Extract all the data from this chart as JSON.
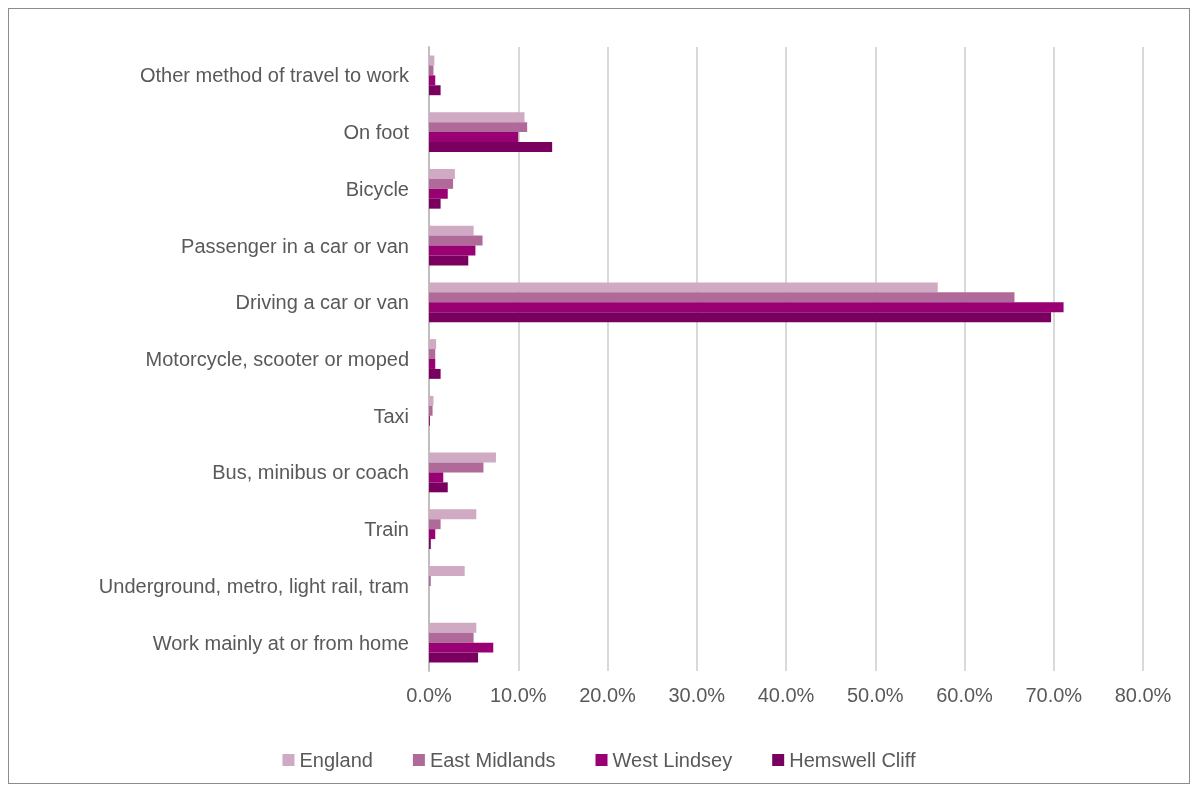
{
  "chart_data": {
    "type": "bar",
    "orientation": "horizontal",
    "categories": [
      "Other method of travel to work",
      "On foot",
      "Bicycle",
      "Passenger in a car or van",
      "Driving a car or van",
      "Motorcycle, scooter or moped",
      "Taxi",
      "Bus, minibus or coach",
      "Train",
      "Underground, metro, light rail, tram",
      "Work mainly at or from home"
    ],
    "series": [
      {
        "name": "England",
        "color": "#d0a9c3",
        "values": [
          0.6,
          10.7,
          2.9,
          5.0,
          57.0,
          0.8,
          0.5,
          7.5,
          5.3,
          4.0,
          5.3
        ]
      },
      {
        "name": "East Midlands",
        "color": "#b06a9a",
        "values": [
          0.5,
          11.0,
          2.7,
          6.0,
          65.6,
          0.7,
          0.4,
          6.1,
          1.3,
          0.2,
          5.0
        ]
      },
      {
        "name": "West Lindsey",
        "color": "#990073",
        "values": [
          0.7,
          10.0,
          2.1,
          5.2,
          71.1,
          0.7,
          0.1,
          1.6,
          0.7,
          null,
          7.2
        ]
      },
      {
        "name": "Hemswell Cliff",
        "color": "#7a0060",
        "values": [
          1.3,
          13.8,
          1.3,
          4.4,
          69.7,
          1.3,
          null,
          2.1,
          0.2,
          null,
          5.5
        ]
      }
    ],
    "xlim": [
      0,
      80
    ],
    "xticks": [
      {
        "value": 0,
        "label": "0.0%"
      },
      {
        "value": 10,
        "label": "10.0%"
      },
      {
        "value": 20,
        "label": "20.0%"
      },
      {
        "value": 30,
        "label": "30.0%"
      },
      {
        "value": 40,
        "label": "40.0%"
      },
      {
        "value": 50,
        "label": "50.0%"
      },
      {
        "value": 60,
        "label": "60.0%"
      },
      {
        "value": 70,
        "label": "70.0%"
      },
      {
        "value": 80,
        "label": "80.0%"
      }
    ],
    "grid": "x",
    "legend": "bottom"
  }
}
